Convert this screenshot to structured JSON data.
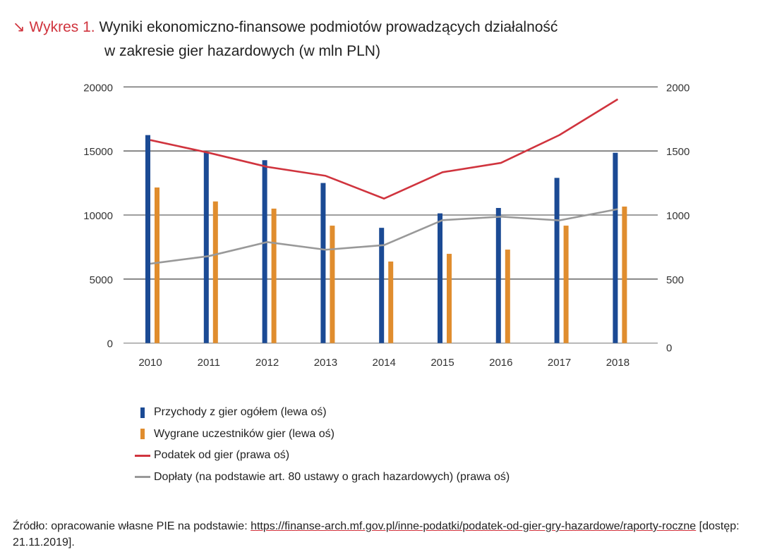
{
  "title": {
    "arrow": "↘",
    "label": "Wykres 1.",
    "line1": "Wyniki ekonomiczno-finansowe podmiotów prowadzących działalność",
    "line2": "w zakresie gier hazardowych (w mln PLN)"
  },
  "chart_data": {
    "type": "bar",
    "categories": [
      "2010",
      "2011",
      "2012",
      "2013",
      "2014",
      "2015",
      "2016",
      "2017",
      "2018"
    ],
    "left_axis": {
      "ylim": [
        0,
        20000
      ],
      "ticks": [
        "0",
        "5000",
        "10000",
        "15000",
        "20000"
      ]
    },
    "right_axis": {
      "ylim": [
        0,
        2000
      ],
      "ticks": [
        "0",
        "500",
        "1000",
        "1500",
        "2000"
      ]
    },
    "grid": true,
    "legend_position": "bottom",
    "series": [
      {
        "name": "Przychody z gier ogółem (lewa oś)",
        "type": "bar",
        "axis": "left",
        "color": "#1b4a94",
        "values": [
          16240,
          14900,
          14280,
          12500,
          9000,
          10130,
          10550,
          12900,
          14860
        ]
      },
      {
        "name": "Wygrane uczestników gier (lewa oś)",
        "type": "bar",
        "axis": "left",
        "color": "#e08d2e",
        "values": [
          12150,
          11060,
          10500,
          9170,
          6370,
          6970,
          7300,
          9170,
          10660
        ]
      },
      {
        "name": "Podatek od gier (prawa oś)",
        "type": "line",
        "axis": "right",
        "color": "#d0343e",
        "values": [
          1585,
          1486,
          1376,
          1306,
          1128,
          1334,
          1407,
          1624,
          1904
        ]
      },
      {
        "name": "Dopłaty (na podstawie art. 80 ustawy o grach hazardowych) (prawa oś)",
        "type": "line",
        "axis": "right",
        "color": "#999999",
        "values": [
          620,
          679,
          789,
          729,
          765,
          960,
          987,
          958,
          1046
        ]
      }
    ]
  },
  "source": {
    "prefix": "Źródło: opracowanie własne PIE na podstawie: ",
    "link": "https://finanse-arch.mf.gov.pl/inne-podatki/podatek-od-gier-gry-hazardowe/raporty-roczne",
    "suffix": " [dostęp: 21.11.2019]."
  }
}
